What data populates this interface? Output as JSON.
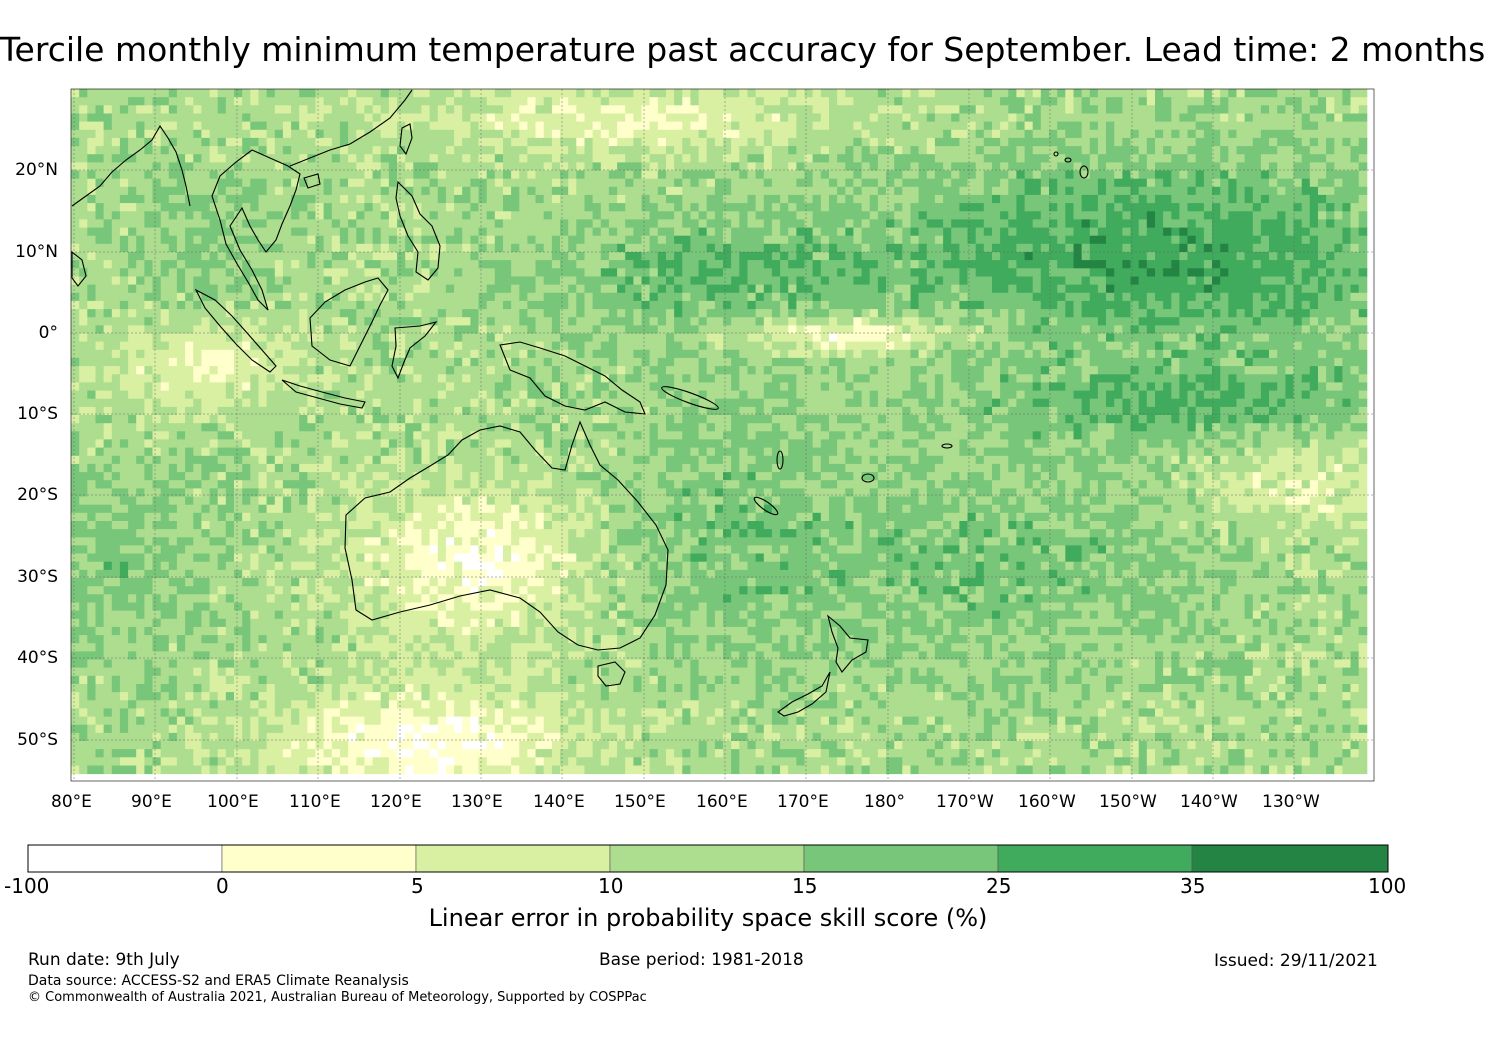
{
  "title": "Tercile monthly minimum temperature past accuracy for September. Lead time: 2 months",
  "map": {
    "lat_labels": [
      "20°N",
      "10°N",
      "0°",
      "10°S",
      "20°S",
      "30°S",
      "40°S",
      "50°S"
    ],
    "lon_labels": [
      "80°E",
      "90°E",
      "100°E",
      "110°E",
      "120°E",
      "130°E",
      "140°E",
      "150°E",
      "160°E",
      "170°E",
      "180°",
      "170°W",
      "160°W",
      "150°W",
      "140°W",
      "130°W"
    ],
    "lat_range": [
      -55,
      30
    ],
    "lon_range": [
      80,
      240
    ],
    "projection": "equirectangular",
    "coastlines": true,
    "gridlines": true
  },
  "colorbar": {
    "label": "Linear error in probability space skill score (%)",
    "ticks": [
      "-100",
      "0",
      "5",
      "10",
      "15",
      "25",
      "35",
      "100"
    ],
    "colors": [
      "#ffffff",
      "#ffffcc",
      "#d9f0a3",
      "#addd8e",
      "#78c679",
      "#41ab5d",
      "#238443"
    ]
  },
  "footer": {
    "run_date": "Run date: 9th July",
    "base_period": "Base period: 1981-2018",
    "issued": "Issued: 29/11/2021",
    "data_source": "Data source: ACCESS-S2 and ERA5 Climate Reanalysis",
    "copyright": "© Commonwealth of Australia 2021, Australian Bureau of Meteorology, Supported by COSPPac"
  }
}
